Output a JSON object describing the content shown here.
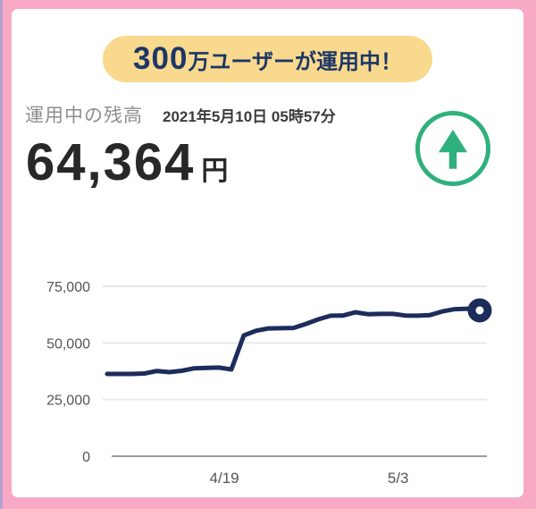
{
  "banner": {
    "text_large": "300",
    "text_small": "万ユーザーが運用中！",
    "bg_color": "#f8d98e",
    "text_color": "#1c3766"
  },
  "balance": {
    "label": "運用中の残高",
    "timestamp": "2021年5月10日 05時57分",
    "amount": "64,364",
    "currency_suffix": "円"
  },
  "trend": {
    "icon": "up-arrow-icon",
    "color": "#2fb07d"
  },
  "frame": {
    "border_color": "#f8a9c5",
    "edge_strip_color": "#b3a1cf",
    "card_bg": "#ffffff"
  },
  "chart_data": {
    "type": "line",
    "title": "",
    "xlabel": "",
    "ylabel": "",
    "x": [
      "4/10",
      "4/11",
      "4/12",
      "4/13",
      "4/14",
      "4/15",
      "4/16",
      "4/17",
      "4/18",
      "4/19",
      "4/20",
      "4/21",
      "4/22",
      "4/23",
      "4/24",
      "4/25",
      "4/26",
      "4/27",
      "4/28",
      "4/29",
      "4/30",
      "5/1",
      "5/2",
      "5/3",
      "5/4",
      "5/5",
      "5/6",
      "5/7",
      "5/8",
      "5/9",
      "5/10"
    ],
    "values": [
      36300,
      36300,
      36300,
      36500,
      37600,
      37100,
      37700,
      38800,
      39000,
      39100,
      38300,
      53300,
      55400,
      56400,
      56500,
      56600,
      58400,
      60400,
      62000,
      62100,
      63500,
      62700,
      62800,
      62800,
      62100,
      62000,
      62300,
      63900,
      64900,
      65100,
      64364
    ],
    "ylim": [
      0,
      75000
    ],
    "yticks": [
      0,
      25000,
      50000,
      75000
    ],
    "ytick_labels": [
      "0",
      "25,000",
      "50,000",
      "75,000"
    ],
    "xtick_labels": [
      {
        "label": "4/19",
        "index": 9
      },
      {
        "label": "5/3",
        "index": 23
      }
    ],
    "grid": true,
    "legend": "none",
    "line_color": "#1c2c5b",
    "grid_color": "#e9e9e9",
    "axis_color": "#9b9b9b",
    "tick_text_color": "#555555",
    "end_marker": true
  }
}
